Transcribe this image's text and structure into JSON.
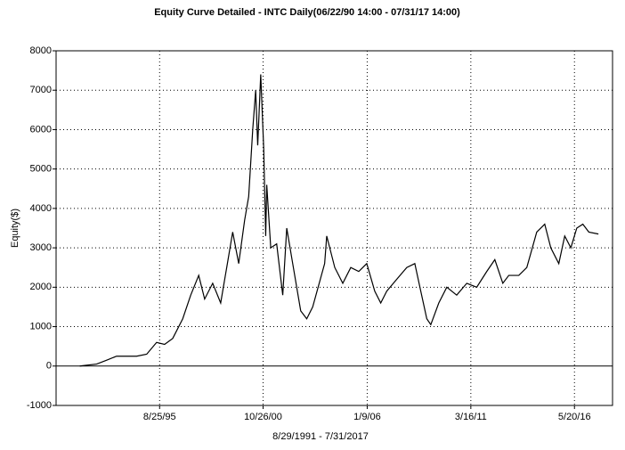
{
  "chart_data": {
    "type": "line",
    "title": "Equity Curve Detailed - INTC Daily(06/22/90 14:00 - 07/31/17 14:00)",
    "x_label": "8/29/1991 - 7/31/2017",
    "y_label": "Equity($)",
    "xlim": [
      "1990-06-22",
      "2018-04-15"
    ],
    "xticks": [
      {
        "value": "1995-08-25",
        "label": "8/25/95"
      },
      {
        "value": "2000-10-26",
        "label": "10/26/00"
      },
      {
        "value": "2006-01-09",
        "label": "1/9/06"
      },
      {
        "value": "2011-03-16",
        "label": "3/16/11"
      },
      {
        "value": "2016-05-20",
        "label": "5/20/16"
      }
    ],
    "ylim": [
      -1000,
      8000
    ],
    "yticks": [
      -1000,
      0,
      1000,
      2000,
      3000,
      4000,
      5000,
      6000,
      7000,
      8000
    ],
    "grid": true,
    "x": [
      "1991-08-29",
      "1992-07-01",
      "1993-01-01",
      "1993-07-01",
      "1994-07-01",
      "1995-01-01",
      "1995-07-01",
      "1995-11-24",
      "1996-04-20",
      "1996-10-20",
      "1997-03-15",
      "1997-08-08",
      "1997-11-24",
      "1998-04-20",
      "1998-09-13",
      "1999-01-01",
      "1999-04-20",
      "1999-08-08",
      "1999-11-24",
      "2000-02-06",
      "2000-04-20",
      "2000-06-13",
      "2000-07-20",
      "2000-09-13",
      "2000-11-07",
      "2000-12-13",
      "2001-01-01",
      "2001-03-15",
      "2001-07-01",
      "2001-10-20",
      "2002-01-01",
      "2002-04-20",
      "2002-09-13",
      "2003-01-01",
      "2003-04-20",
      "2003-11-24",
      "2004-01-01",
      "2004-05-27",
      "2004-10-20",
      "2005-03-15",
      "2005-08-08",
      "2006-01-01",
      "2006-05-27",
      "2006-09-13",
      "2007-01-01",
      "2007-07-01",
      "2008-01-01",
      "2008-05-27",
      "2008-09-13",
      "2009-01-01",
      "2009-03-15",
      "2009-08-08",
      "2010-01-01",
      "2010-07-01",
      "2011-01-01",
      "2011-07-01",
      "2012-01-01",
      "2012-05-27",
      "2012-10-20",
      "2013-02-06",
      "2013-08-08",
      "2014-01-01",
      "2014-07-01",
      "2014-11-24",
      "2015-03-15",
      "2015-08-08",
      "2015-11-24",
      "2016-03-15",
      "2016-07-01",
      "2016-10-20",
      "2017-02-06",
      "2017-07-31"
    ],
    "series": [
      {
        "name": "Equity",
        "color": "#000000",
        "values": [
          0,
          50,
          150,
          250,
          250,
          300,
          600,
          550,
          700,
          1200,
          1800,
          2300,
          1700,
          2100,
          1600,
          2500,
          3400,
          2600,
          3700,
          4300,
          6000,
          7000,
          5600,
          7400,
          5500,
          3300,
          4600,
          3000,
          3100,
          1800,
          3500,
          2600,
          1400,
          1200,
          1500,
          2600,
          3300,
          2500,
          2100,
          2500,
          2400,
          2600,
          1900,
          1600,
          1900,
          2200,
          2500,
          2600,
          1900,
          1200,
          1050,
          1600,
          2000,
          1800,
          2100,
          2000,
          2400,
          2700,
          2100,
          2300,
          2300,
          2500,
          3400,
          3600,
          3000,
          2600,
          3300,
          3000,
          3500,
          3600,
          3400,
          3350
        ]
      }
    ]
  }
}
